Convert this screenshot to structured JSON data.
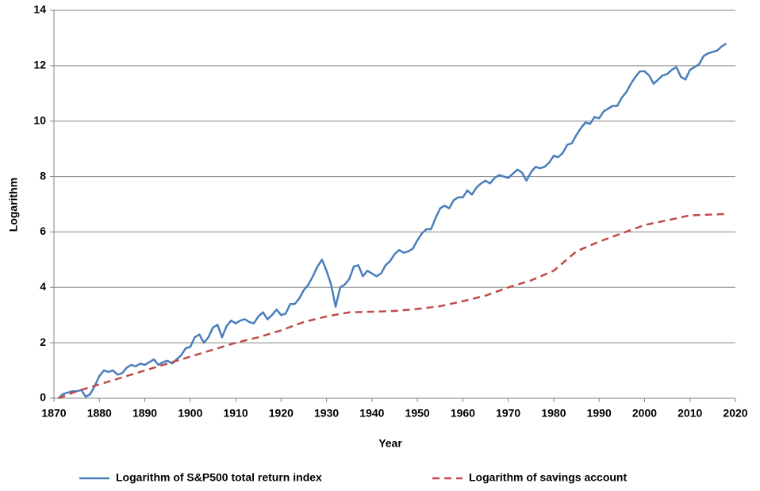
{
  "chart_data": {
    "type": "line",
    "xlabel": "Year",
    "ylabel": "Logarithm",
    "xlim": [
      1870,
      2020
    ],
    "xticks": [
      1870,
      1880,
      1890,
      1900,
      1910,
      1920,
      1930,
      1940,
      1950,
      1960,
      1970,
      1980,
      1990,
      2000,
      2010,
      2020
    ],
    "ylim": [
      0,
      14
    ],
    "yticks": [
      0,
      2,
      4,
      6,
      8,
      10,
      12,
      14
    ],
    "grid": true,
    "legend": "bottom",
    "series": [
      {
        "name": "Logarithm of S&P500 total return index",
        "color": "#4a7ebb",
        "style": "solid",
        "x": [
          1871,
          1872,
          1873,
          1874,
          1875,
          1876,
          1877,
          1878,
          1879,
          1880,
          1881,
          1882,
          1883,
          1884,
          1885,
          1886,
          1887,
          1888,
          1889,
          1890,
          1891,
          1892,
          1893,
          1894,
          1895,
          1896,
          1897,
          1898,
          1899,
          1900,
          1901,
          1902,
          1903,
          1904,
          1905,
          1906,
          1907,
          1908,
          1909,
          1910,
          1911,
          1912,
          1913,
          1914,
          1915,
          1916,
          1917,
          1918,
          1919,
          1920,
          1921,
          1922,
          1923,
          1924,
          1925,
          1926,
          1927,
          1928,
          1929,
          1930,
          1931,
          1932,
          1933,
          1934,
          1935,
          1936,
          1937,
          1938,
          1939,
          1940,
          1941,
          1942,
          1943,
          1944,
          1945,
          1946,
          1947,
          1948,
          1949,
          1950,
          1951,
          1952,
          1953,
          1954,
          1955,
          1956,
          1957,
          1958,
          1959,
          1960,
          1961,
          1962,
          1963,
          1964,
          1965,
          1966,
          1967,
          1968,
          1969,
          1970,
          1971,
          1972,
          1973,
          1974,
          1975,
          1976,
          1977,
          1978,
          1979,
          1980,
          1981,
          1982,
          1983,
          1984,
          1985,
          1986,
          1987,
          1988,
          1989,
          1990,
          1991,
          1992,
          1993,
          1994,
          1995,
          1996,
          1997,
          1998,
          1999,
          2000,
          2001,
          2002,
          2003,
          2004,
          2005,
          2006,
          2007,
          2008,
          2009,
          2010,
          2011,
          2012,
          2013,
          2014,
          2015,
          2016,
          2017,
          2018
        ],
        "values": [
          0,
          0.15,
          0.2,
          0.25,
          0.25,
          0.3,
          0.05,
          0.15,
          0.45,
          0.8,
          1.0,
          0.95,
          1.0,
          0.85,
          0.9,
          1.1,
          1.2,
          1.15,
          1.25,
          1.2,
          1.3,
          1.4,
          1.2,
          1.3,
          1.35,
          1.25,
          1.4,
          1.55,
          1.8,
          1.85,
          2.2,
          2.3,
          2.0,
          2.2,
          2.55,
          2.65,
          2.2,
          2.6,
          2.8,
          2.7,
          2.8,
          2.85,
          2.75,
          2.7,
          2.95,
          3.1,
          2.85,
          3.0,
          3.2,
          3.0,
          3.05,
          3.4,
          3.4,
          3.6,
          3.9,
          4.1,
          4.4,
          4.75,
          5.0,
          4.6,
          4.1,
          3.3,
          4.0,
          4.1,
          4.3,
          4.75,
          4.8,
          4.4,
          4.6,
          4.5,
          4.4,
          4.5,
          4.8,
          4.95,
          5.2,
          5.35,
          5.25,
          5.3,
          5.4,
          5.7,
          5.95,
          6.1,
          6.1,
          6.5,
          6.85,
          6.95,
          6.85,
          7.15,
          7.25,
          7.25,
          7.5,
          7.35,
          7.6,
          7.75,
          7.85,
          7.75,
          7.95,
          8.05,
          8.0,
          7.95,
          8.1,
          8.25,
          8.15,
          7.85,
          8.15,
          8.35,
          8.3,
          8.35,
          8.5,
          8.75,
          8.7,
          8.85,
          9.15,
          9.2,
          9.5,
          9.75,
          9.95,
          9.9,
          10.15,
          10.1,
          10.35,
          10.45,
          10.55,
          10.55,
          10.85,
          11.05,
          11.35,
          11.6,
          11.8,
          11.8,
          11.65,
          11.35,
          11.5,
          11.65,
          11.7,
          11.85,
          11.95,
          11.6,
          11.5,
          11.85,
          11.95,
          12.05,
          12.35,
          12.45,
          12.5,
          12.55,
          12.7,
          12.8
        ]
      },
      {
        "name": "Logarithm of savings account",
        "color": "#be4b48",
        "style": "dashed",
        "x": [
          1871,
          1875,
          1880,
          1885,
          1890,
          1895,
          1900,
          1905,
          1910,
          1915,
          1920,
          1925,
          1930,
          1935,
          1940,
          1945,
          1950,
          1955,
          1960,
          1965,
          1970,
          1975,
          1980,
          1985,
          1990,
          1995,
          2000,
          2005,
          2010,
          2015,
          2018
        ],
        "values": [
          0,
          0.25,
          0.5,
          0.75,
          1.0,
          1.25,
          1.5,
          1.75,
          2.0,
          2.2,
          2.45,
          2.75,
          2.95,
          3.1,
          3.12,
          3.15,
          3.22,
          3.32,
          3.5,
          3.7,
          4.0,
          4.25,
          4.6,
          5.3,
          5.65,
          5.95,
          6.25,
          6.42,
          6.6,
          6.63,
          6.65
        ]
      }
    ]
  }
}
